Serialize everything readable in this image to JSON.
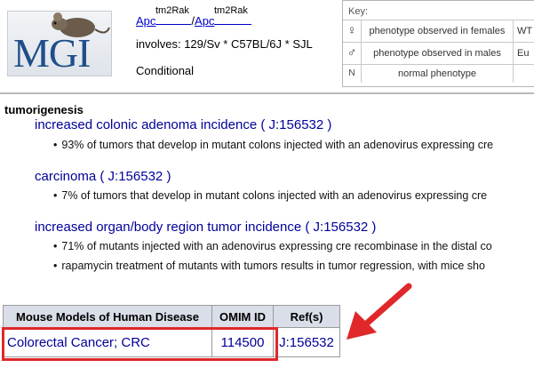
{
  "header": {
    "logo_text": "MGI",
    "allele_a": "Apc",
    "allele_a_sup": "tm2Rak",
    "allele_sep": "/",
    "allele_b": "Apc",
    "allele_b_sup": "tm2Rak",
    "involves": "involves: 129/Sv * C57BL/6J * SJL",
    "conditional": "Conditional"
  },
  "key": {
    "title": "Key:",
    "rows": [
      {
        "symbol": "♀",
        "desc": "phenotype observed in females",
        "extra": "WT"
      },
      {
        "symbol": "♂",
        "desc": "phenotype observed in males",
        "extra": "Eu"
      },
      {
        "symbol": "N",
        "desc": "normal phenotype",
        "extra": ""
      }
    ]
  },
  "phenotypes": {
    "section_title": "tumorigenesis",
    "terms": [
      {
        "label": "increased colonic adenoma incidence",
        "ref": "J:156532",
        "notes": [
          "93% of tumors that develop in mutant colons injected with an adenovirus expressing cre"
        ]
      },
      {
        "label": "carcinoma",
        "ref": "J:156532",
        "notes": [
          "7% of tumors that develop in mutant colons injected with an adenovirus expressing cre"
        ]
      },
      {
        "label": "increased organ/body region tumor incidence",
        "ref": "J:156532",
        "notes": [
          "71% of mutants injected with an adenovirus expressing cre recombinase in the distal co",
          "rapamycin treatment of mutants with tumors results in tumor regression, with mice sho"
        ]
      }
    ]
  },
  "disease_table": {
    "headers": [
      "Mouse Models of Human Disease",
      "OMIM ID",
      "Ref(s)"
    ],
    "rows": [
      {
        "disease": "Colorectal Cancer; CRC",
        "omim": "114500",
        "ref": "J:156532"
      }
    ]
  },
  "colors": {
    "link": "#0000cc",
    "term": "#000099",
    "highlight": "#e0282a",
    "table_header": "#d9dee8"
  }
}
